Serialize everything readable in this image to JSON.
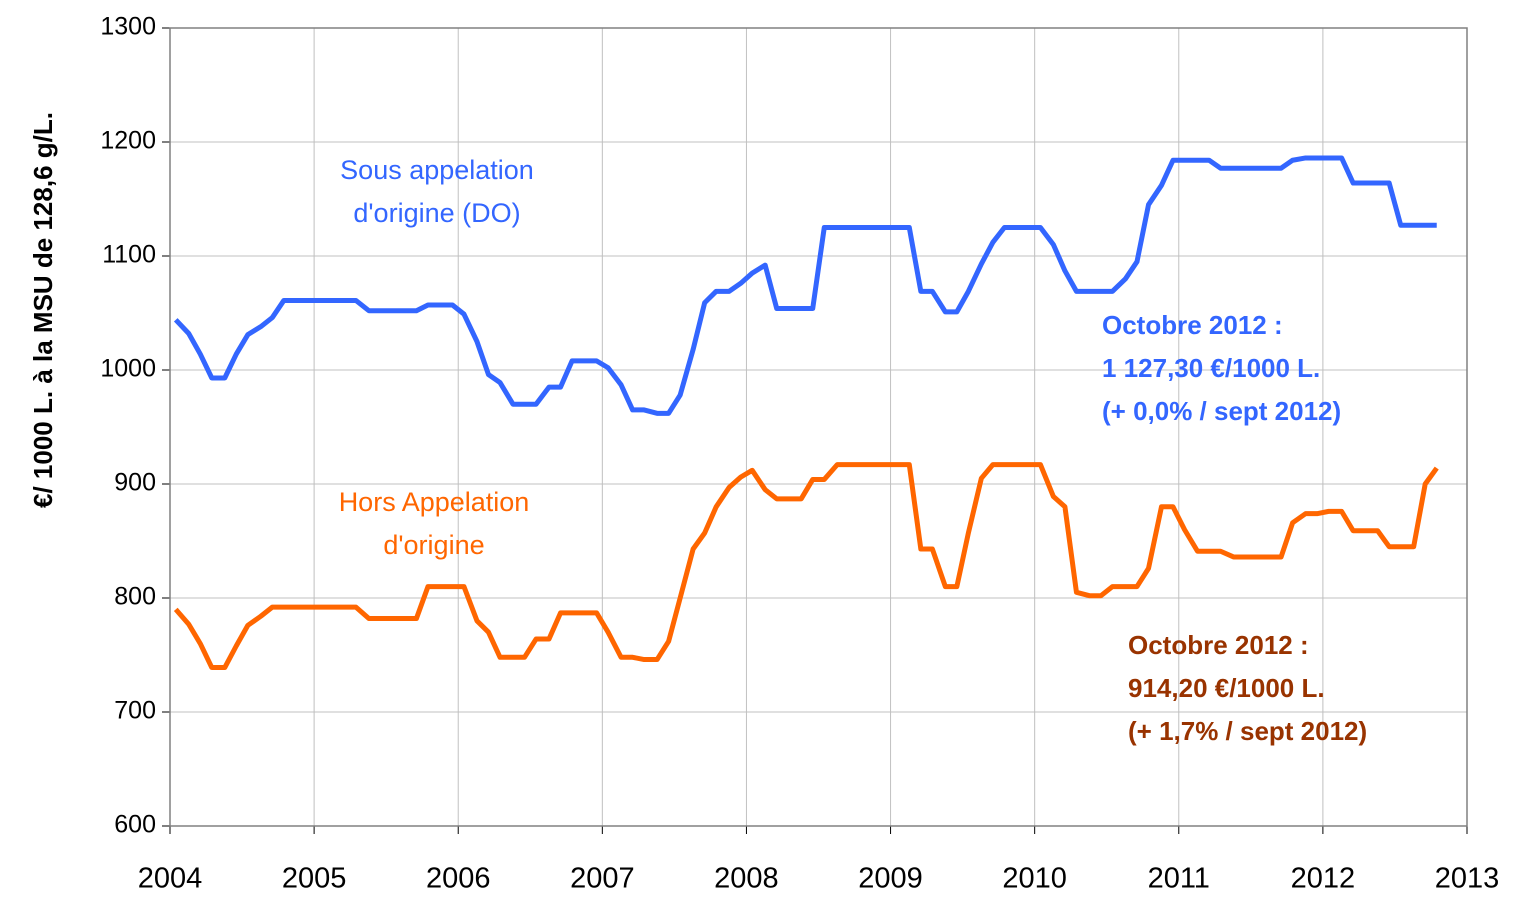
{
  "chart_data": {
    "type": "line",
    "ylabel": "€/ 1000 L. à la MSU de 128,6 g/L.",
    "x": [
      2004.04,
      2004.13,
      2004.21,
      2004.29,
      2004.38,
      2004.46,
      2004.54,
      2004.63,
      2004.71,
      2004.79,
      2004.88,
      2004.96,
      2005.04,
      2005.13,
      2005.21,
      2005.29,
      2005.38,
      2005.46,
      2005.54,
      2005.63,
      2005.71,
      2005.79,
      2005.88,
      2005.96,
      2006.04,
      2006.13,
      2006.21,
      2006.29,
      2006.38,
      2006.46,
      2006.54,
      2006.63,
      2006.71,
      2006.79,
      2006.88,
      2006.96,
      2007.04,
      2007.13,
      2007.21,
      2007.29,
      2007.38,
      2007.46,
      2007.54,
      2007.63,
      2007.71,
      2007.79,
      2007.88,
      2007.96,
      2008.04,
      2008.13,
      2008.21,
      2008.29,
      2008.38,
      2008.46,
      2008.54,
      2008.63,
      2008.71,
      2008.79,
      2008.88,
      2008.96,
      2009.04,
      2009.13,
      2009.21,
      2009.29,
      2009.38,
      2009.46,
      2009.54,
      2009.63,
      2009.71,
      2009.79,
      2009.88,
      2009.96,
      2010.04,
      2010.13,
      2010.21,
      2010.29,
      2010.38,
      2010.46,
      2010.54,
      2010.63,
      2010.71,
      2010.79,
      2010.88,
      2010.96,
      2011.04,
      2011.13,
      2011.21,
      2011.29,
      2011.38,
      2011.46,
      2011.54,
      2011.63,
      2011.71,
      2011.79,
      2011.88,
      2011.96,
      2012.04,
      2012.13,
      2012.21,
      2012.29,
      2012.38,
      2012.46,
      2012.54,
      2012.63,
      2012.71,
      2012.79
    ],
    "series": [
      {
        "name": "Sous appelation d'origine (DO)",
        "color": "#3366ff",
        "values": [
          1044,
          1032,
          1014,
          993,
          993,
          1014,
          1031,
          1038,
          1046,
          1061,
          1061,
          1061,
          1061,
          1061,
          1061,
          1061,
          1052,
          1052,
          1052,
          1052,
          1052,
          1057,
          1057,
          1057,
          1049,
          1025,
          996,
          989,
          970,
          970,
          970,
          985,
          985,
          1008,
          1008,
          1008,
          1002,
          987,
          965,
          965,
          962,
          962,
          978,
          1018,
          1059,
          1069,
          1069,
          1076,
          1085,
          1092,
          1054,
          1054,
          1054,
          1054,
          1125,
          1125,
          1125,
          1125,
          1125,
          1125,
          1125,
          1125,
          1069,
          1069,
          1051,
          1051,
          1069,
          1093,
          1112,
          1125,
          1125,
          1125,
          1125,
          1110,
          1087,
          1069,
          1069,
          1069,
          1069,
          1080,
          1095,
          1145,
          1162,
          1184,
          1184,
          1184,
          1184,
          1177,
          1177,
          1177,
          1177,
          1177,
          1177,
          1184,
          1186,
          1186,
          1186,
          1186,
          1164,
          1164,
          1164,
          1164,
          1127,
          1127,
          1127,
          1127
        ]
      },
      {
        "name": "Hors Appelation d'origine",
        "color": "#ff6600",
        "values": [
          790,
          777,
          760,
          739,
          739,
          758,
          776,
          784,
          792,
          792,
          792,
          792,
          792,
          792,
          792,
          792,
          782,
          782,
          782,
          782,
          782,
          810,
          810,
          810,
          810,
          780,
          770,
          748,
          748,
          748,
          764,
          764,
          787,
          787,
          787,
          787,
          770,
          748,
          748,
          746,
          746,
          762,
          800,
          843,
          857,
          880,
          897,
          906,
          912,
          895,
          887,
          887,
          887,
          904,
          904,
          917,
          917,
          917,
          917,
          917,
          917,
          917,
          843,
          843,
          810,
          810,
          857,
          905,
          917,
          917,
          917,
          917,
          917,
          889,
          880,
          805,
          802,
          802,
          810,
          810,
          810,
          826,
          880,
          880,
          860,
          841,
          841,
          841,
          836,
          836,
          836,
          836,
          836,
          866,
          874,
          874,
          876,
          876,
          859,
          859,
          859,
          845,
          845,
          845,
          900,
          914
        ]
      }
    ],
    "series_labels": [
      [
        "Sous appelation",
        "d'origine (DO)"
      ],
      [
        "Hors Appelation",
        "d'origine"
      ]
    ],
    "annotations": [
      {
        "lines": [
          "Octobre 2012 :",
          "1 127,30 €/1000 L.",
          "(+ 0,0% / sept 2012)"
        ],
        "color": "#3366ff"
      },
      {
        "lines": [
          "Octobre 2012 :",
          "914,20 €/1000 L.",
          "(+ 1,7% / sept 2012)"
        ],
        "color": "#993300"
      }
    ],
    "xlim": [
      2004,
      2013
    ],
    "xticks": [
      2004,
      2005,
      2006,
      2007,
      2008,
      2009,
      2010,
      2011,
      2012,
      2013
    ],
    "ylim": [
      600,
      1300
    ],
    "yticks": [
      600,
      700,
      800,
      900,
      1000,
      1100,
      1200,
      1300
    ],
    "grid": true
  }
}
